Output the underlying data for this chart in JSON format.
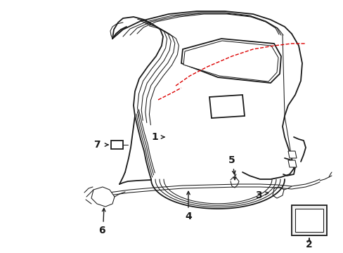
{
  "bg_color": "#ffffff",
  "line_color": "#1a1a1a",
  "red_color": "#dd0000",
  "label_color": "#000000",
  "lw_main": 1.3,
  "lw_thin": 0.75,
  "lw_inner": 0.6
}
